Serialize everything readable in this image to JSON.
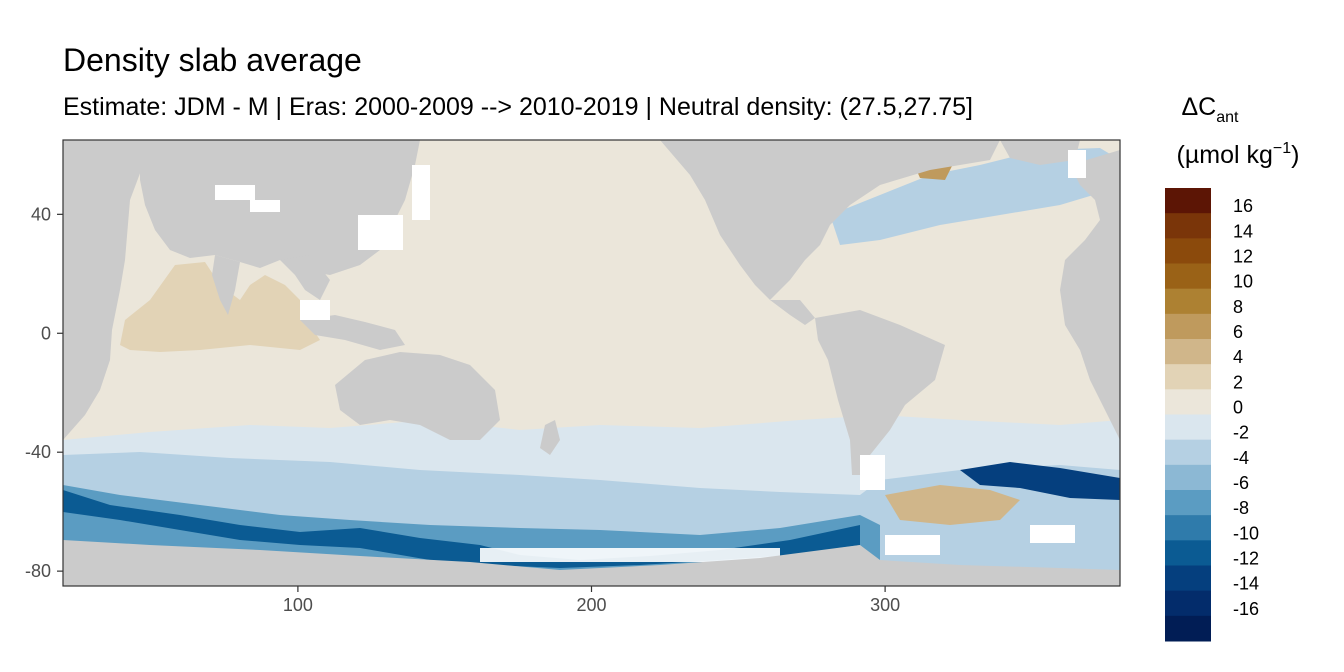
{
  "chart_data": {
    "type": "heatmap",
    "title": "Density slab average",
    "subtitle": "Estimate: JDM - M | Eras: 2000-2009 --> 2010-2019 | Neutral density: (27.5,27.75]",
    "xlabel": "",
    "ylabel": "",
    "xlim": [
      20,
      380
    ],
    "ylim": [
      -85,
      65
    ],
    "x_ticks": [
      100,
      200,
      300
    ],
    "y_ticks": [
      40,
      0,
      -40,
      -80
    ],
    "grid": false,
    "legend": {
      "title_main": "ΔC",
      "title_sub": "ant",
      "unit_text": "(µmol kg",
      "unit_exp": "−1",
      "unit_close": ")",
      "placement": "right",
      "bins": [
        {
          "label": "16",
          "color": "#5c1505"
        },
        {
          "label": "14",
          "color": "#7a3509"
        },
        {
          "label": "12",
          "color": "#8b4a0c"
        },
        {
          "label": "10",
          "color": "#9a6217"
        },
        {
          "label": "8",
          "color": "#ad8132"
        },
        {
          "label": "6",
          "color": "#bf9a5d"
        },
        {
          "label": "4",
          "color": "#d0b68a"
        },
        {
          "label": "2",
          "color": "#e2d3b6"
        },
        {
          "label": "0",
          "color": "#ebe6da"
        },
        {
          "label": "-2",
          "color": "#dae6ee"
        },
        {
          "label": "-4",
          "color": "#b5d0e3"
        },
        {
          "label": "-6",
          "color": "#8cb8d4"
        },
        {
          "label": "-8",
          "color": "#5b9cc2"
        },
        {
          "label": "-10",
          "color": "#2f7bab"
        },
        {
          "label": "-12",
          "color": "#0b5b93"
        },
        {
          "label": "-14",
          "color": "#053f7e"
        },
        {
          "label": "-16",
          "color": "#032c6b"
        },
        {
          "label": "",
          "color": "#011d55"
        }
      ]
    },
    "colors": {
      "land": "#cbcbcb",
      "no_data": "#ffffff",
      "ocean_near_zero": "#ebe6da",
      "indian_ocean": "#e2d3b6",
      "southern_light": "#dae6ee"
    },
    "regions": [
      {
        "name": "indian-ocean-north",
        "value": 2
      },
      {
        "name": "pacific",
        "value": 0
      },
      {
        "name": "atlantic",
        "value": 0
      },
      {
        "name": "southern-ocean-band",
        "value": -2
      },
      {
        "name": "antarctic-margin",
        "value": -12
      },
      {
        "name": "weddell-sector",
        "value": -14
      },
      {
        "name": "south-atlantic-patch",
        "value": 4
      },
      {
        "name": "subpolar-north-atlantic",
        "value": -6
      },
      {
        "name": "labrador-sea",
        "value": 6
      }
    ]
  }
}
